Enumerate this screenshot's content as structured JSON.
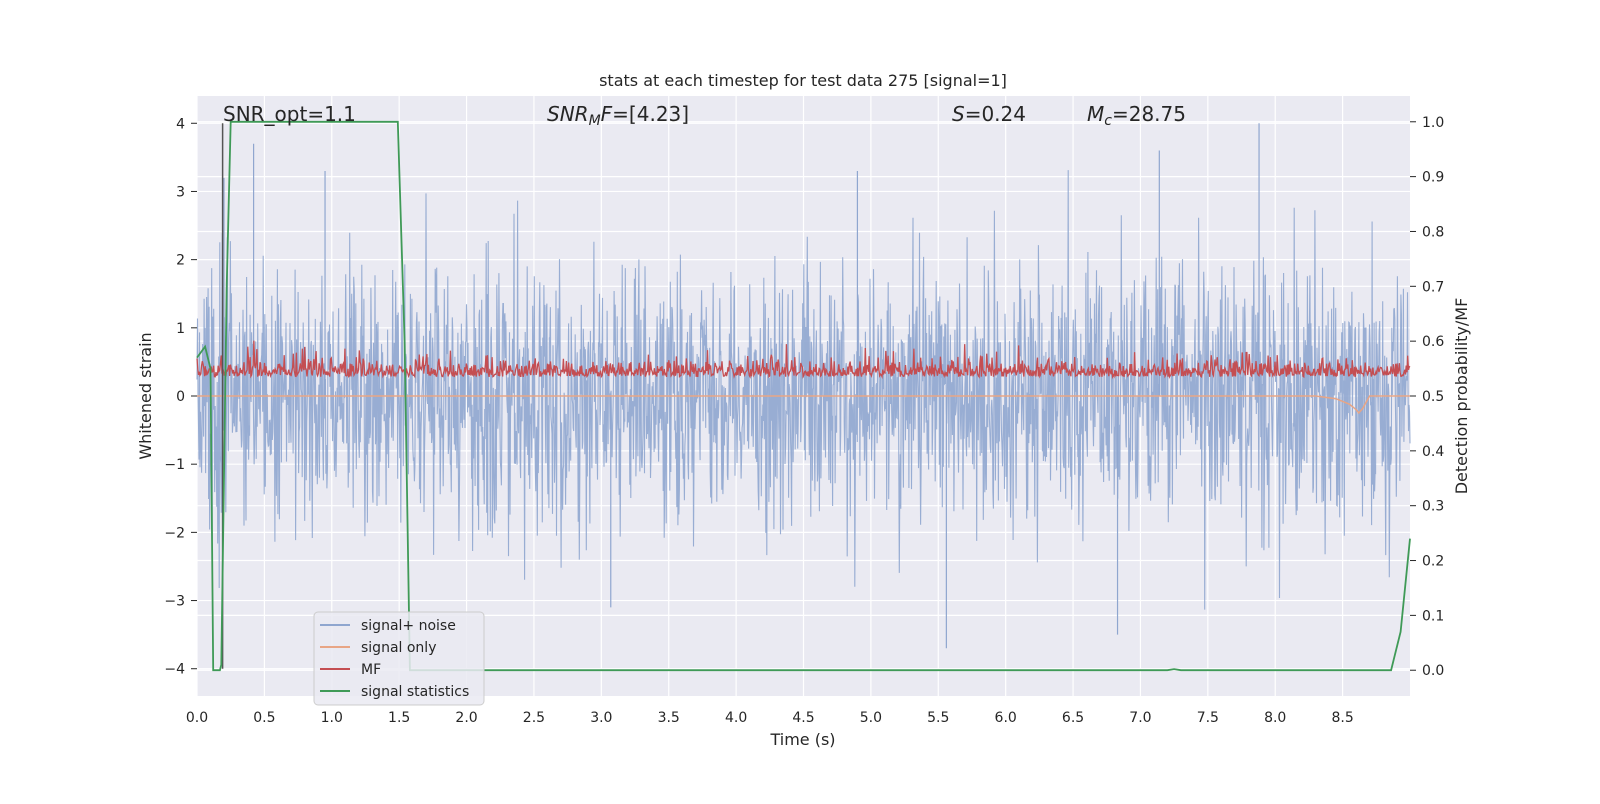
{
  "chart_data": {
    "type": "line",
    "title": "stats at each timestep for test data 275 [signal=1]",
    "xlabel": "Time (s)",
    "ylabel": "Whitened strain",
    "y2label": "Detection probability/MF",
    "xlim": [
      0.0,
      9.0
    ],
    "ylim": [
      -4.4,
      4.4
    ],
    "y2lim": [
      -0.047,
      1.047
    ],
    "xticks": [
      "0.0",
      "0.5",
      "1.0",
      "1.5",
      "2.0",
      "2.5",
      "3.0",
      "3.5",
      "4.0",
      "4.5",
      "5.0",
      "5.5",
      "6.0",
      "6.5",
      "7.0",
      "7.5",
      "8.0",
      "8.5"
    ],
    "yticks": [
      "4",
      "3",
      "2",
      "1",
      "0",
      "−1",
      "−2",
      "−3",
      "−4"
    ],
    "y2ticks": [
      "1.0",
      "0.9",
      "0.8",
      "0.7",
      "0.6",
      "0.5",
      "0.4",
      "0.3",
      "0.2",
      "0.1",
      "0.0"
    ],
    "grid": true,
    "legend_position": "lower-left",
    "annotations": {
      "snr_opt": "SNR_opt=1.1",
      "snr_mf_label": "SNR",
      "snr_mf_sub": "M",
      "snr_mf_f": "F",
      "snr_mf_value": "=[4.23]",
      "s_label": "S",
      "s_value": "=0.24",
      "mc_label": "M",
      "mc_sub": "c",
      "mc_value": "=28.75"
    },
    "series": [
      {
        "name": "signal+ noise",
        "color": "#8fa6cf",
        "axis": "left",
        "envelope": {
          "typical_abs": 1.6,
          "max_peak": 4.0,
          "min_peak": -3.7
        }
      },
      {
        "name": "signal only",
        "color": "#e8a585",
        "axis": "left",
        "x": [
          0.0,
          8.3,
          8.45,
          8.55,
          8.6,
          8.62,
          8.65,
          8.7,
          9.0
        ],
        "y": [
          0.0,
          0.0,
          -0.04,
          -0.12,
          -0.2,
          -0.25,
          -0.18,
          0.0,
          0.0
        ]
      },
      {
        "name": "MF",
        "color": "#c44e52",
        "axis": "left",
        "band": {
          "low": 0.05,
          "high": 0.55,
          "max_peak": 0.95
        }
      },
      {
        "name": "signal statistics",
        "color": "#3f9a57",
        "axis": "right",
        "x": [
          0.0,
          0.06,
          0.1,
          0.12,
          0.17,
          0.18,
          0.22,
          0.25,
          1.49,
          1.54,
          1.58,
          7.2,
          7.25,
          7.3,
          8.86,
          8.93,
          9.0
        ],
        "y": [
          0.57,
          0.59,
          0.55,
          0.0,
          0.0,
          0.01,
          0.7,
          1.0,
          1.0,
          0.6,
          0.0,
          0.0,
          0.002,
          0.0,
          0.0,
          0.07,
          0.24
        ]
      }
    ],
    "marker_line": {
      "x": 0.19,
      "color": "#555555"
    }
  }
}
